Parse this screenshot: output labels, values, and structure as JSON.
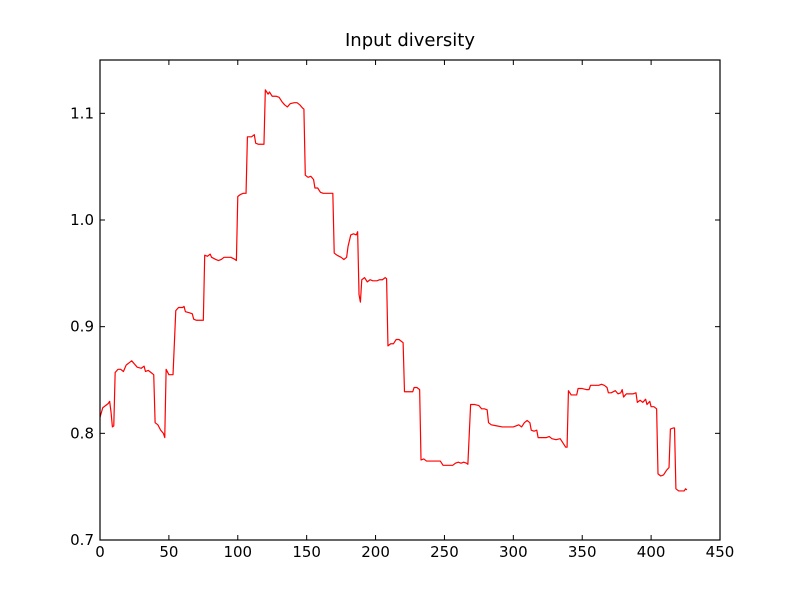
{
  "chart_data": {
    "type": "line",
    "title": "Input diversity",
    "xlabel": "",
    "ylabel": "",
    "xlim": [
      0,
      450
    ],
    "ylim": [
      0.7,
      1.15
    ],
    "xticks": [
      "0",
      "50",
      "100",
      "150",
      "200",
      "250",
      "300",
      "350",
      "400",
      "450"
    ],
    "xtick_values": [
      0,
      50,
      100,
      150,
      200,
      250,
      300,
      350,
      400,
      450
    ],
    "yticks": [
      "0.7",
      "0.8",
      "0.9",
      "1.0",
      "1.1"
    ],
    "ytick_values": [
      0.7,
      0.8,
      0.9,
      1.0,
      1.1
    ],
    "grid": false,
    "legend": "none",
    "series": [
      {
        "color": "#ff0000",
        "points": [
          [
            0,
            0.815
          ],
          [
            2,
            0.824
          ],
          [
            4,
            0.826
          ],
          [
            6,
            0.828
          ],
          [
            7,
            0.83
          ],
          [
            8,
            0.82
          ],
          [
            9,
            0.806
          ],
          [
            10,
            0.807
          ],
          [
            11,
            0.857
          ],
          [
            13,
            0.86
          ],
          [
            15,
            0.86
          ],
          [
            17,
            0.858
          ],
          [
            19,
            0.864
          ],
          [
            21,
            0.866
          ],
          [
            23,
            0.868
          ],
          [
            25,
            0.865
          ],
          [
            27,
            0.862
          ],
          [
            30,
            0.861
          ],
          [
            32,
            0.863
          ],
          [
            33,
            0.858
          ],
          [
            35,
            0.859
          ],
          [
            37,
            0.857
          ],
          [
            39,
            0.855
          ],
          [
            40,
            0.81
          ],
          [
            42,
            0.808
          ],
          [
            44,
            0.803
          ],
          [
            46,
            0.8
          ],
          [
            47,
            0.796
          ],
          [
            48,
            0.86
          ],
          [
            50,
            0.855
          ],
          [
            53,
            0.855
          ],
          [
            55,
            0.915
          ],
          [
            57,
            0.918
          ],
          [
            60,
            0.918
          ],
          [
            61,
            0.919
          ],
          [
            62,
            0.914
          ],
          [
            65,
            0.913
          ],
          [
            67,
            0.912
          ],
          [
            68,
            0.907
          ],
          [
            70,
            0.906
          ],
          [
            72,
            0.906
          ],
          [
            75,
            0.906
          ],
          [
            76,
            0.967
          ],
          [
            78,
            0.966
          ],
          [
            80,
            0.968
          ],
          [
            81,
            0.965
          ],
          [
            84,
            0.963
          ],
          [
            86,
            0.962
          ],
          [
            88,
            0.963
          ],
          [
            90,
            0.965
          ],
          [
            92,
            0.965
          ],
          [
            95,
            0.965
          ],
          [
            98,
            0.963
          ],
          [
            99,
            0.962
          ],
          [
            100,
            1.022
          ],
          [
            102,
            1.024
          ],
          [
            104,
            1.025
          ],
          [
            106,
            1.025
          ],
          [
            107,
            1.078
          ],
          [
            110,
            1.078
          ],
          [
            112,
            1.08
          ],
          [
            113,
            1.072
          ],
          [
            115,
            1.071
          ],
          [
            117,
            1.071
          ],
          [
            119,
            1.071
          ],
          [
            120,
            1.122
          ],
          [
            122,
            1.118
          ],
          [
            123,
            1.12
          ],
          [
            125,
            1.116
          ],
          [
            128,
            1.116
          ],
          [
            130,
            1.115
          ],
          [
            132,
            1.111
          ],
          [
            134,
            1.108
          ],
          [
            136,
            1.106
          ],
          [
            138,
            1.109
          ],
          [
            141,
            1.11
          ],
          [
            143,
            1.11
          ],
          [
            145,
            1.108
          ],
          [
            147,
            1.105
          ],
          [
            148,
            1.104
          ],
          [
            149,
            1.042
          ],
          [
            151,
            1.04
          ],
          [
            153,
            1.041
          ],
          [
            155,
            1.038
          ],
          [
            156,
            1.03
          ],
          [
            158,
            1.03
          ],
          [
            160,
            1.026
          ],
          [
            162,
            1.025
          ],
          [
            165,
            1.025
          ],
          [
            169,
            1.025
          ],
          [
            170,
            0.969
          ],
          [
            172,
            0.967
          ],
          [
            175,
            0.965
          ],
          [
            177,
            0.963
          ],
          [
            179,
            0.965
          ],
          [
            180,
            0.975
          ],
          [
            182,
            0.986
          ],
          [
            184,
            0.987
          ],
          [
            186,
            0.986
          ],
          [
            187,
            0.989
          ],
          [
            188,
            0.93
          ],
          [
            189,
            0.923
          ],
          [
            190,
            0.944
          ],
          [
            192,
            0.946
          ],
          [
            194,
            0.942
          ],
          [
            196,
            0.944
          ],
          [
            198,
            0.943
          ],
          [
            201,
            0.943
          ],
          [
            203,
            0.944
          ],
          [
            205,
            0.944
          ],
          [
            207,
            0.946
          ],
          [
            208,
            0.945
          ],
          [
            209,
            0.882
          ],
          [
            211,
            0.884
          ],
          [
            213,
            0.884
          ],
          [
            215,
            0.888
          ],
          [
            217,
            0.888
          ],
          [
            219,
            0.886
          ],
          [
            220,
            0.885
          ],
          [
            221,
            0.839
          ],
          [
            224,
            0.839
          ],
          [
            227,
            0.839
          ],
          [
            228,
            0.843
          ],
          [
            230,
            0.843
          ],
          [
            232,
            0.841
          ],
          [
            233,
            0.775
          ],
          [
            235,
            0.776
          ],
          [
            237,
            0.774
          ],
          [
            240,
            0.774
          ],
          [
            244,
            0.774
          ],
          [
            247,
            0.774
          ],
          [
            249,
            0.77
          ],
          [
            252,
            0.77
          ],
          [
            256,
            0.77
          ],
          [
            258,
            0.772
          ],
          [
            260,
            0.773
          ],
          [
            262,
            0.772
          ],
          [
            264,
            0.773
          ],
          [
            266,
            0.772
          ],
          [
            267,
            0.771
          ],
          [
            269,
            0.827
          ],
          [
            272,
            0.827
          ],
          [
            275,
            0.826
          ],
          [
            277,
            0.823
          ],
          [
            279,
            0.823
          ],
          [
            281,
            0.822
          ],
          [
            282,
            0.81
          ],
          [
            284,
            0.808
          ],
          [
            288,
            0.807
          ],
          [
            292,
            0.806
          ],
          [
            296,
            0.806
          ],
          [
            300,
            0.806
          ],
          [
            304,
            0.808
          ],
          [
            306,
            0.806
          ],
          [
            308,
            0.81
          ],
          [
            310,
            0.812
          ],
          [
            312,
            0.81
          ],
          [
            313,
            0.803
          ],
          [
            315,
            0.802
          ],
          [
            317,
            0.803
          ],
          [
            318,
            0.796
          ],
          [
            321,
            0.796
          ],
          [
            324,
            0.796
          ],
          [
            326,
            0.797
          ],
          [
            328,
            0.795
          ],
          [
            331,
            0.794
          ],
          [
            334,
            0.795
          ],
          [
            336,
            0.791
          ],
          [
            338,
            0.787
          ],
          [
            339,
            0.787
          ],
          [
            340,
            0.84
          ],
          [
            342,
            0.836
          ],
          [
            344,
            0.836
          ],
          [
            346,
            0.836
          ],
          [
            347,
            0.842
          ],
          [
            350,
            0.842
          ],
          [
            353,
            0.841
          ],
          [
            355,
            0.841
          ],
          [
            356,
            0.845
          ],
          [
            359,
            0.845
          ],
          [
            362,
            0.845
          ],
          [
            364,
            0.846
          ],
          [
            366,
            0.845
          ],
          [
            368,
            0.843
          ],
          [
            369,
            0.838
          ],
          [
            371,
            0.838
          ],
          [
            374,
            0.84
          ],
          [
            376,
            0.837
          ],
          [
            378,
            0.838
          ],
          [
            379,
            0.841
          ],
          [
            380,
            0.834
          ],
          [
            382,
            0.837
          ],
          [
            385,
            0.837
          ],
          [
            387,
            0.837
          ],
          [
            389,
            0.838
          ],
          [
            390,
            0.829
          ],
          [
            392,
            0.831
          ],
          [
            394,
            0.829
          ],
          [
            396,
            0.832
          ],
          [
            397,
            0.827
          ],
          [
            399,
            0.83
          ],
          [
            400,
            0.825
          ],
          [
            402,
            0.825
          ],
          [
            404,
            0.823
          ],
          [
            405,
            0.762
          ],
          [
            407,
            0.76
          ],
          [
            409,
            0.761
          ],
          [
            411,
            0.765
          ],
          [
            413,
            0.768
          ],
          [
            414,
            0.804
          ],
          [
            416,
            0.805
          ],
          [
            417,
            0.805
          ],
          [
            418,
            0.748
          ],
          [
            420,
            0.746
          ],
          [
            422,
            0.746
          ],
          [
            424,
            0.746
          ],
          [
            425,
            0.748
          ],
          [
            426,
            0.747
          ]
        ]
      }
    ]
  }
}
